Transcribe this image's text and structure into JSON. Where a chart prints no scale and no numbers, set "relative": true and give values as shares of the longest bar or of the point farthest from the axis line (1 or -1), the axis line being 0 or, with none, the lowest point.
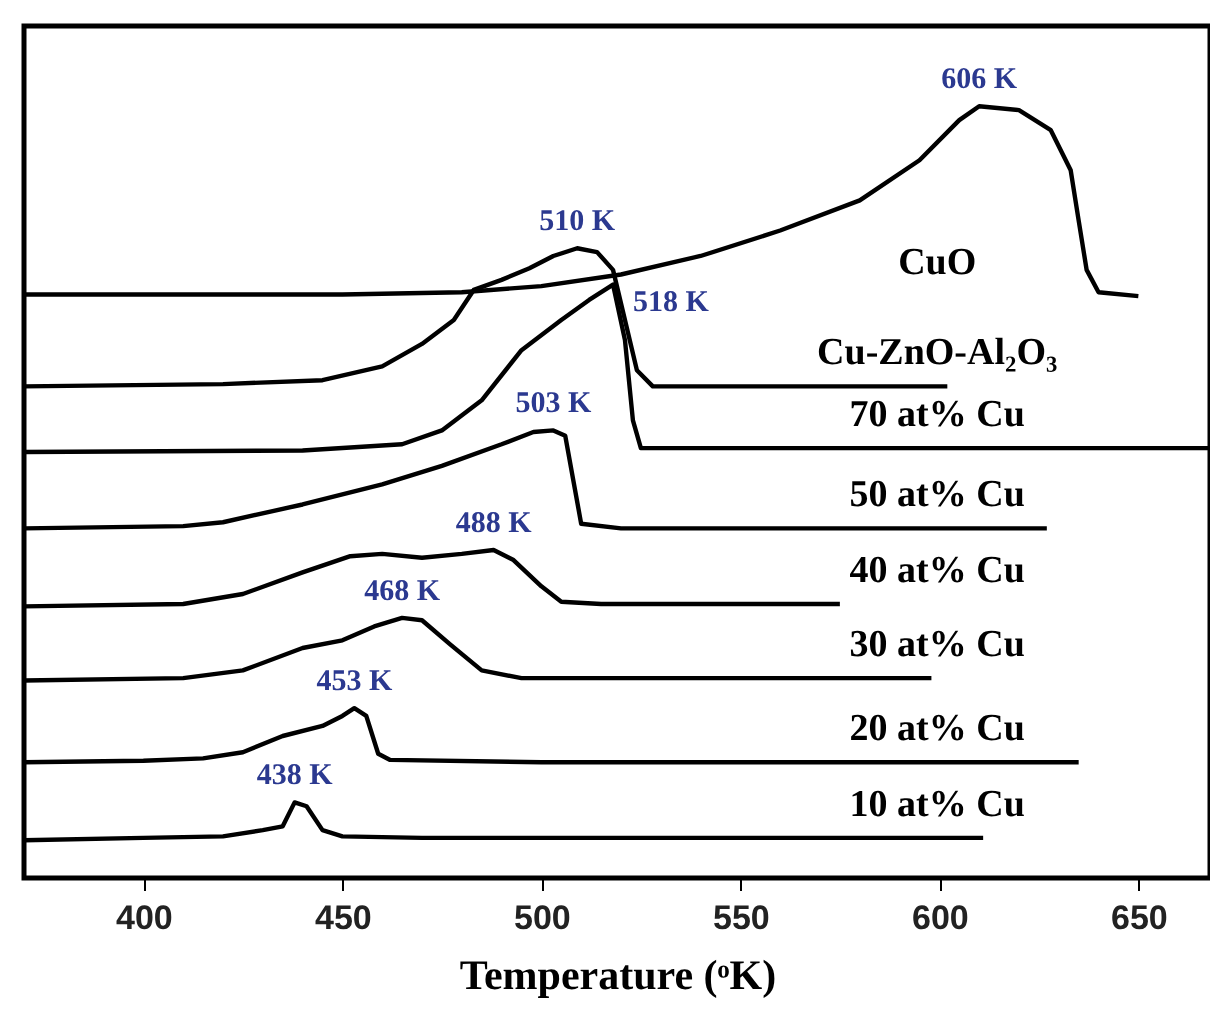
{
  "chart_data": {
    "type": "line",
    "xlabel": "Temperature (ᵒK)",
    "relative": true,
    "xlim": [
      370,
      668
    ],
    "xticks": [
      400,
      450,
      500,
      550,
      600,
      650
    ],
    "series": [
      {
        "name": "CuO",
        "color": "#000000",
        "x": [
          370,
          450,
          480,
          500,
          520,
          540,
          560,
          580,
          595,
          605,
          610,
          620,
          628,
          633,
          635,
          637,
          640,
          650
        ],
        "values": [
          0.756,
          0.756,
          0.759,
          0.767,
          0.782,
          0.806,
          0.839,
          0.878,
          0.93,
          0.982,
          1.0,
          0.995,
          0.969,
          0.917,
          0.852,
          0.788,
          0.759,
          0.754
        ]
      },
      {
        "name": "Cu-ZnO-Al₂O₃",
        "color": "#000000",
        "x": [
          370,
          420,
          445,
          460,
          470,
          478,
          483,
          490,
          497,
          503,
          509,
          514,
          518,
          521,
          524,
          528,
          540,
          602
        ],
        "values": [
          0.637,
          0.64,
          0.645,
          0.663,
          0.692,
          0.723,
          0.762,
          0.775,
          0.79,
          0.806,
          0.816,
          0.811,
          0.788,
          0.723,
          0.658,
          0.637,
          0.637,
          0.637
        ]
      },
      {
        "name": "70 at% Cu",
        "color": "#000000",
        "x": [
          370,
          440,
          465,
          475,
          485,
          495,
          505,
          512,
          518,
          521,
          523,
          525,
          540,
          668
        ],
        "values": [
          0.552,
          0.554,
          0.562,
          0.58,
          0.619,
          0.684,
          0.723,
          0.749,
          0.769,
          0.697,
          0.593,
          0.557,
          0.557,
          0.557
        ]
      },
      {
        "name": "50 at% Cu",
        "color": "#000000",
        "x": [
          370,
          410,
          420,
          440,
          460,
          475,
          490,
          498,
          503,
          506,
          508,
          510,
          520,
          627
        ],
        "values": [
          0.453,
          0.456,
          0.461,
          0.484,
          0.51,
          0.534,
          0.562,
          0.578,
          0.58,
          0.573,
          0.516,
          0.459,
          0.453,
          0.453
        ]
      },
      {
        "name": "40 at% Cu",
        "color": "#000000",
        "x": [
          370,
          410,
          425,
          440,
          452,
          460,
          470,
          480,
          488,
          493,
          500,
          505,
          515,
          575
        ],
        "values": [
          0.352,
          0.355,
          0.368,
          0.396,
          0.417,
          0.42,
          0.415,
          0.42,
          0.425,
          0.412,
          0.378,
          0.358,
          0.355,
          0.355
        ]
      },
      {
        "name": "30 at% Cu",
        "color": "#000000",
        "x": [
          370,
          410,
          425,
          440,
          450,
          458,
          465,
          470,
          477,
          485,
          495,
          598
        ],
        "values": [
          0.256,
          0.259,
          0.269,
          0.298,
          0.308,
          0.326,
          0.337,
          0.334,
          0.303,
          0.269,
          0.259,
          0.259
        ]
      },
      {
        "name": "20 at% Cu",
        "color": "#000000",
        "x": [
          370,
          400,
          415,
          425,
          435,
          445,
          450,
          453,
          456,
          459,
          462,
          500,
          635
        ],
        "values": [
          0.15,
          0.152,
          0.155,
          0.163,
          0.184,
          0.197,
          0.21,
          0.22,
          0.21,
          0.161,
          0.153,
          0.15,
          0.15
        ]
      },
      {
        "name": "10 at% Cu",
        "color": "#000000",
        "x": [
          370,
          400,
          420,
          430,
          435,
          438,
          441,
          445,
          450,
          470,
          550,
          611
        ],
        "values": [
          0.049,
          0.052,
          0.054,
          0.062,
          0.067,
          0.098,
          0.093,
          0.062,
          0.054,
          0.052,
          0.052,
          0.052
        ]
      }
    ],
    "annotations": [
      {
        "text": "606 K",
        "x": 610,
        "y": 1.0
      },
      {
        "text": "510 K",
        "x": 509,
        "y": 0.816
      },
      {
        "text": "518 K",
        "x": 518,
        "y": 0.769
      },
      {
        "text": "503 K",
        "x": 503,
        "y": 0.58
      },
      {
        "text": "488 K",
        "x": 488,
        "y": 0.425
      },
      {
        "text": "468 K",
        "x": 465,
        "y": 0.337
      },
      {
        "text": "453 K",
        "x": 453,
        "y": 0.22
      },
      {
        "text": "438 K",
        "x": 438,
        "y": 0.098
      }
    ]
  }
}
